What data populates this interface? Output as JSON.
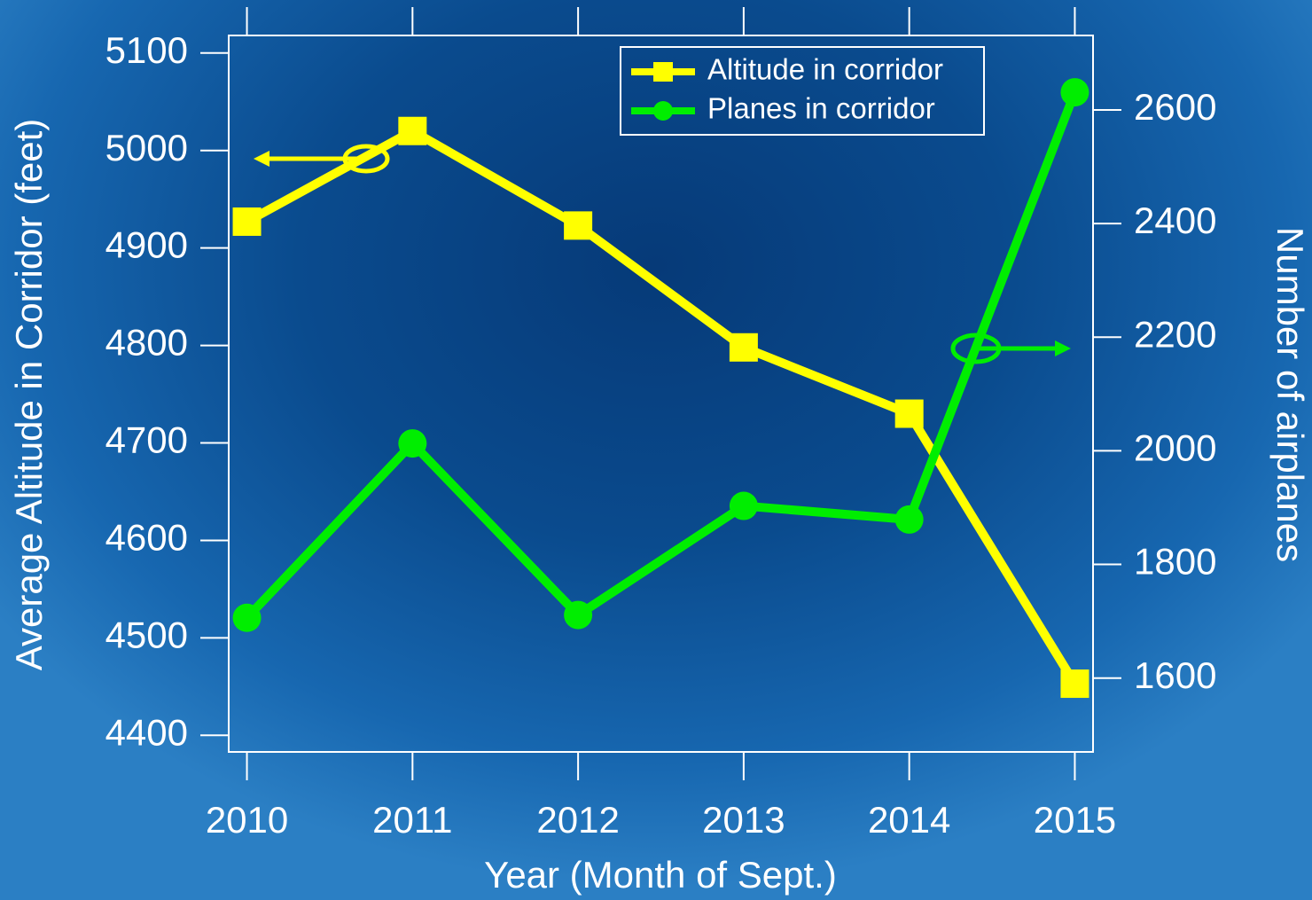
{
  "chart_data": {
    "type": "line",
    "x": [
      2010,
      2011,
      2012,
      2013,
      2014,
      2015
    ],
    "xlim": [
      2009.89,
      2015.11
    ],
    "xticks": [
      2010,
      2011,
      2012,
      2013,
      2014,
      2015
    ],
    "ylim": [
      4383,
      5118
    ],
    "yticks": [
      4400,
      4500,
      4600,
      4700,
      4800,
      4900,
      5000,
      5100
    ],
    "y2lim": [
      1470,
      2731
    ],
    "y2ticks": [
      1600,
      1800,
      2000,
      2200,
      2400,
      2600
    ],
    "xlabel": "Year (Month of Sept.)",
    "ylabel": "Average Altitude in Corridor (feet)",
    "y2label": "Number of airplanes",
    "legend": "upper right",
    "series": [
      {
        "name": "Altitude in corridor",
        "color": "#ffff00",
        "marker": "square",
        "values": [
          4927,
          5020,
          4923,
          4798,
          4730,
          4453
        ]
      },
      {
        "name": "Planes in corridor",
        "color": "#00ee00",
        "marker": "circle",
        "axis": "y2",
        "values": [
          1706,
          2013,
          1711,
          1903,
          1879,
          2631
        ]
      }
    ]
  }
}
